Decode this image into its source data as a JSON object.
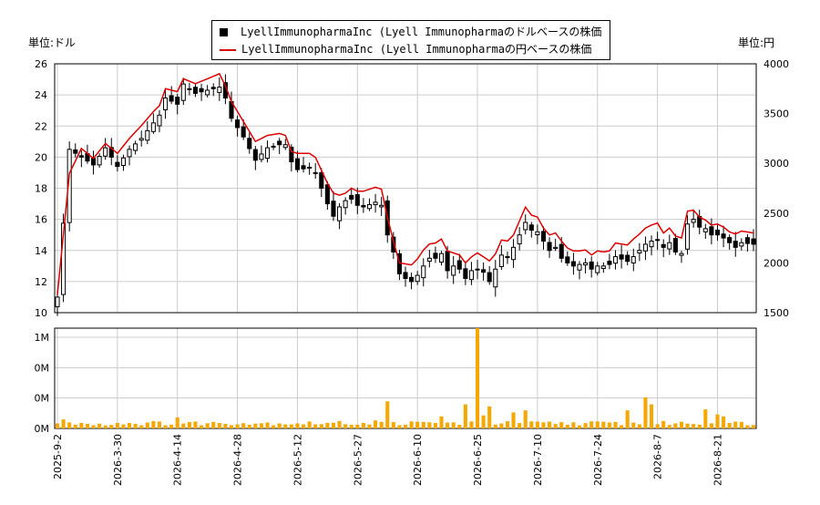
{
  "legend": {
    "usd_label": "LyellImmunopharmaInc (Lyell Immunopharmaのドルベースの株価",
    "jpy_label": "LyellImmunopharmaInc (Lyell Immunopharmaの円ベースの株価"
  },
  "units": {
    "left": "単位:ドル",
    "right": "単位:円"
  },
  "chart_data": {
    "type": "candlestick",
    "ylim_left": [
      10,
      26
    ],
    "ylim_right": [
      1500,
      4000
    ],
    "yticks_left": [
      10,
      12,
      14,
      16,
      18,
      20,
      22,
      24,
      26
    ],
    "yticks_right": [
      1500,
      2000,
      2500,
      3000,
      3500,
      4000
    ],
    "volume_yticks": [
      "0M",
      "0M",
      "0M",
      "1M"
    ],
    "x_tick_labels": [
      "2025-9-2",
      "2026-3-30",
      "2026-4-14",
      "2026-4-28",
      "2026-5-12",
      "2026-5-27",
      "2026-6-10",
      "2026-6-25",
      "2026-7-10",
      "2026-7-24",
      "2026-8-7",
      "2026-8-21"
    ],
    "x_tick_index": [
      0,
      10,
      20,
      30,
      40,
      50,
      60,
      70,
      80,
      90,
      100,
      110
    ],
    "n": 117,
    "anchors_close": [
      [
        0,
        11
      ],
      [
        2,
        20.5
      ],
      [
        4,
        20
      ],
      [
        6,
        19.5
      ],
      [
        8,
        20.6
      ],
      [
        10,
        19.4
      ],
      [
        12,
        20.5
      ],
      [
        14,
        21.2
      ],
      [
        16,
        22.2
      ],
      [
        17,
        22.7
      ],
      [
        18,
        23.8
      ],
      [
        20,
        23.4
      ],
      [
        21,
        24.7
      ],
      [
        23,
        24.1
      ],
      [
        25,
        24.3
      ],
      [
        27,
        24.5
      ],
      [
        28,
        23.8
      ],
      [
        29,
        22.5
      ],
      [
        31,
        21.3
      ],
      [
        33,
        19.8
      ],
      [
        35,
        20.6
      ],
      [
        37,
        20.8
      ],
      [
        38,
        20.8
      ],
      [
        39,
        19.7
      ],
      [
        40,
        19.2
      ],
      [
        42,
        19.3
      ],
      [
        43,
        19
      ],
      [
        45,
        17
      ],
      [
        46,
        16.2
      ],
      [
        47,
        16.8
      ],
      [
        48,
        17.2
      ],
      [
        49,
        17.3
      ],
      [
        50,
        16.9
      ],
      [
        51,
        16.8
      ],
      [
        53,
        17.1
      ],
      [
        54,
        16.9
      ],
      [
        55,
        15
      ],
      [
        56,
        13.9
      ],
      [
        57,
        12.5
      ],
      [
        58,
        12.2
      ],
      [
        59,
        12
      ],
      [
        60,
        12.4
      ],
      [
        61,
        13
      ],
      [
        62,
        13.5
      ],
      [
        63,
        13.5
      ],
      [
        64,
        13.8
      ],
      [
        65,
        12.7
      ],
      [
        66,
        13
      ],
      [
        67,
        12.8
      ],
      [
        68,
        12.2
      ],
      [
        69,
        12.7
      ],
      [
        70,
        12.8
      ],
      [
        71,
        12.6
      ],
      [
        72,
        12
      ],
      [
        73,
        12.8
      ],
      [
        74,
        13.7
      ],
      [
        75,
        13.6
      ],
      [
        76,
        14.2
      ],
      [
        78,
        15.8
      ],
      [
        79,
        15.3
      ],
      [
        80,
        15.2
      ],
      [
        81,
        14.6
      ],
      [
        82,
        14
      ],
      [
        83,
        14.2
      ],
      [
        84,
        13.5
      ],
      [
        85,
        13.2
      ],
      [
        86,
        13
      ],
      [
        87,
        13.1
      ],
      [
        88,
        13.2
      ],
      [
        89,
        12.8
      ],
      [
        90,
        13
      ],
      [
        91,
        13
      ],
      [
        92,
        13.1
      ],
      [
        93,
        13.6
      ],
      [
        95,
        13.3
      ],
      [
        96,
        13.6
      ],
      [
        97,
        14
      ],
      [
        98,
        14.4
      ],
      [
        99,
        14.6
      ],
      [
        100,
        14.7
      ],
      [
        101,
        14.2
      ],
      [
        102,
        14.5
      ],
      [
        103,
        13.9
      ],
      [
        104,
        13.8
      ],
      [
        105,
        15.7
      ],
      [
        106,
        16
      ],
      [
        107,
        15.5
      ],
      [
        108,
        15.4
      ],
      [
        109,
        15
      ],
      [
        110,
        15
      ],
      [
        111,
        14.8
      ],
      [
        112,
        14.5
      ],
      [
        113,
        14.2
      ],
      [
        114,
        14.5
      ],
      [
        116,
        14.4
      ]
    ],
    "anchors_yen": [
      [
        0,
        1680
      ],
      [
        2,
        2900
      ],
      [
        4,
        3150
      ],
      [
        6,
        3050
      ],
      [
        8,
        3200
      ],
      [
        10,
        3100
      ],
      [
        12,
        3250
      ],
      [
        14,
        3380
      ],
      [
        16,
        3520
      ],
      [
        17,
        3580
      ],
      [
        18,
        3750
      ],
      [
        20,
        3720
      ],
      [
        21,
        3850
      ],
      [
        23,
        3800
      ],
      [
        25,
        3850
      ],
      [
        27,
        3900
      ],
      [
        28,
        3780
      ],
      [
        29,
        3620
      ],
      [
        31,
        3420
      ],
      [
        33,
        3220
      ],
      [
        35,
        3280
      ],
      [
        37,
        3300
      ],
      [
        38,
        3280
      ],
      [
        39,
        3120
      ],
      [
        40,
        3100
      ],
      [
        42,
        3100
      ],
      [
        43,
        3060
      ],
      [
        45,
        2800
      ],
      [
        46,
        2700
      ],
      [
        47,
        2680
      ],
      [
        48,
        2700
      ],
      [
        49,
        2750
      ],
      [
        50,
        2720
      ],
      [
        51,
        2720
      ],
      [
        53,
        2760
      ],
      [
        54,
        2740
      ],
      [
        55,
        2460
      ],
      [
        56,
        2220
      ],
      [
        57,
        2000
      ],
      [
        58,
        1990
      ],
      [
        59,
        1980
      ],
      [
        60,
        2040
      ],
      [
        61,
        2130
      ],
      [
        62,
        2190
      ],
      [
        63,
        2200
      ],
      [
        64,
        2240
      ],
      [
        65,
        2120
      ],
      [
        66,
        2100
      ],
      [
        67,
        2080
      ],
      [
        68,
        2000
      ],
      [
        69,
        2060
      ],
      [
        70,
        2100
      ],
      [
        71,
        2060
      ],
      [
        72,
        2020
      ],
      [
        73,
        2090
      ],
      [
        74,
        2230
      ],
      [
        75,
        2220
      ],
      [
        76,
        2280
      ],
      [
        78,
        2560
      ],
      [
        79,
        2480
      ],
      [
        80,
        2460
      ],
      [
        81,
        2350
      ],
      [
        82,
        2280
      ],
      [
        83,
        2300
      ],
      [
        84,
        2220
      ],
      [
        85,
        2150
      ],
      [
        86,
        2120
      ],
      [
        87,
        2120
      ],
      [
        88,
        2130
      ],
      [
        89,
        2080
      ],
      [
        90,
        2120
      ],
      [
        91,
        2110
      ],
      [
        92,
        2120
      ],
      [
        93,
        2200
      ],
      [
        95,
        2180
      ],
      [
        96,
        2240
      ],
      [
        97,
        2290
      ],
      [
        98,
        2350
      ],
      [
        99,
        2380
      ],
      [
        100,
        2400
      ],
      [
        101,
        2300
      ],
      [
        102,
        2350
      ],
      [
        103,
        2270
      ],
      [
        104,
        2250
      ],
      [
        105,
        2520
      ],
      [
        106,
        2530
      ],
      [
        107,
        2460
      ],
      [
        108,
        2430
      ],
      [
        109,
        2380
      ],
      [
        110,
        2390
      ],
      [
        111,
        2360
      ],
      [
        112,
        2310
      ],
      [
        113,
        2290
      ],
      [
        114,
        2320
      ],
      [
        116,
        2300
      ]
    ],
    "volume_spikes": [
      [
        0,
        0.05
      ],
      [
        1,
        0.09
      ],
      [
        2,
        0.06
      ],
      [
        8,
        0.03
      ],
      [
        20,
        0.11
      ],
      [
        30,
        0.04
      ],
      [
        53,
        0.08
      ],
      [
        55,
        0.27
      ],
      [
        64,
        0.12
      ],
      [
        68,
        0.24
      ],
      [
        70,
        1.0
      ],
      [
        71,
        0.13
      ],
      [
        72,
        0.22
      ],
      [
        76,
        0.16
      ],
      [
        78,
        0.18
      ],
      [
        95,
        0.18
      ],
      [
        98,
        0.31
      ],
      [
        99,
        0.24
      ],
      [
        108,
        0.19
      ],
      [
        110,
        0.14
      ],
      [
        111,
        0.12
      ]
    ]
  }
}
